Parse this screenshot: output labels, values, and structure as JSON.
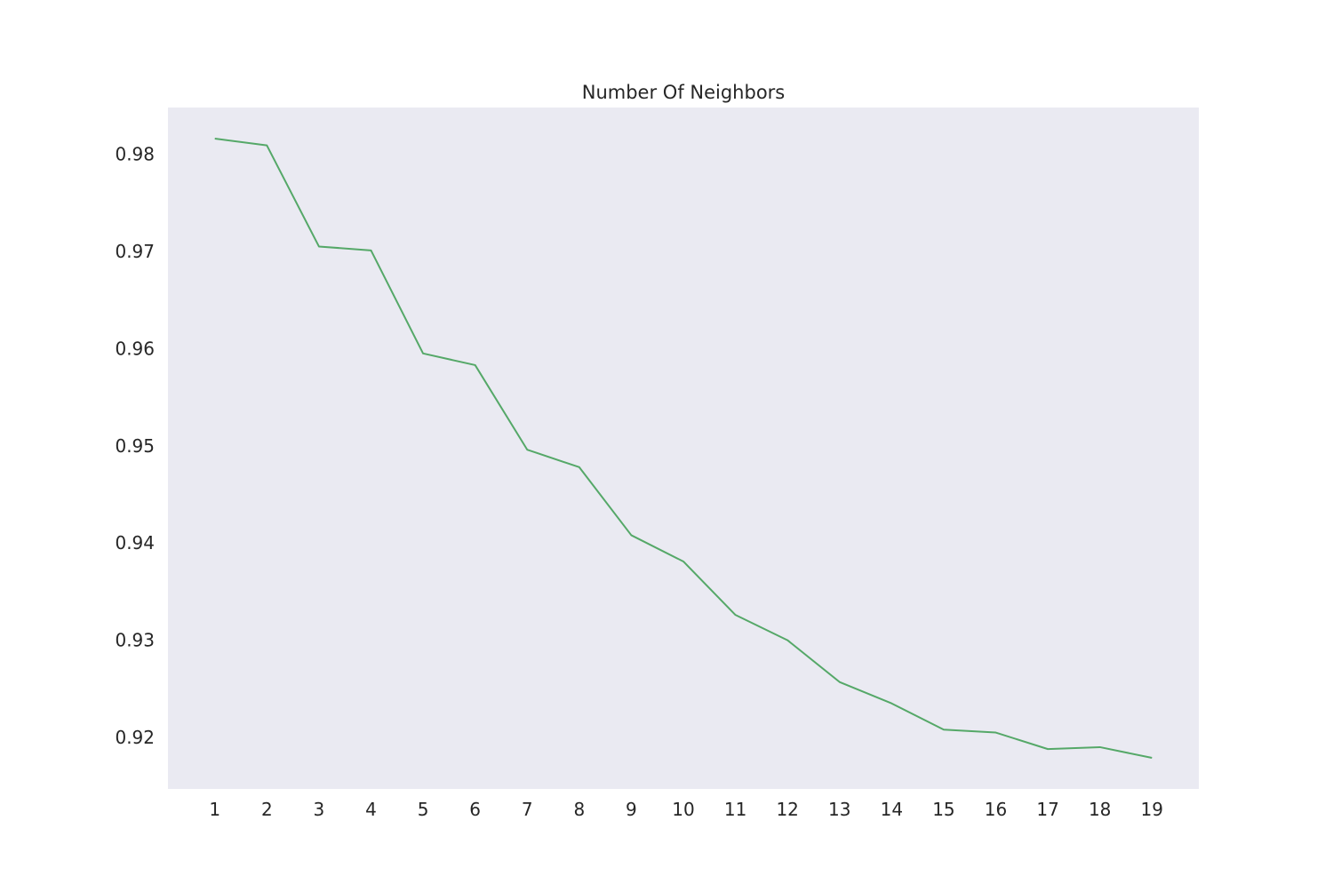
{
  "chart_data": {
    "type": "line",
    "title": "Number Of Neighbors",
    "xlabel": "",
    "ylabel": "",
    "x": [
      1,
      2,
      3,
      4,
      5,
      6,
      7,
      8,
      9,
      10,
      11,
      12,
      13,
      14,
      15,
      16,
      17,
      18,
      19
    ],
    "x_tick_labels": [
      "1",
      "2",
      "3",
      "4",
      "5",
      "6",
      "7",
      "8",
      "9",
      "10",
      "11",
      "12",
      "13",
      "14",
      "15",
      "16",
      "17",
      "18",
      "19"
    ],
    "y_ticks": [
      0.92,
      0.93,
      0.94,
      0.95,
      0.96,
      0.97,
      0.98
    ],
    "y_tick_labels": [
      "0.92",
      "0.93",
      "0.94",
      "0.95",
      "0.96",
      "0.97",
      "0.98"
    ],
    "xlim": [
      0.1,
      19.9
    ],
    "ylim": [
      0.9147,
      0.9848
    ],
    "grid": false,
    "series": [
      {
        "values": [
          0.9816,
          0.9809,
          0.9705,
          0.9701,
          0.9595,
          0.9583,
          0.9496,
          0.9478,
          0.9408,
          0.9381,
          0.9326,
          0.93,
          0.9257,
          0.9235,
          0.9208,
          0.9205,
          0.9188,
          0.919,
          0.9179
        ],
        "color": "#55a868"
      }
    ],
    "background_color": "#eaeaf2"
  }
}
